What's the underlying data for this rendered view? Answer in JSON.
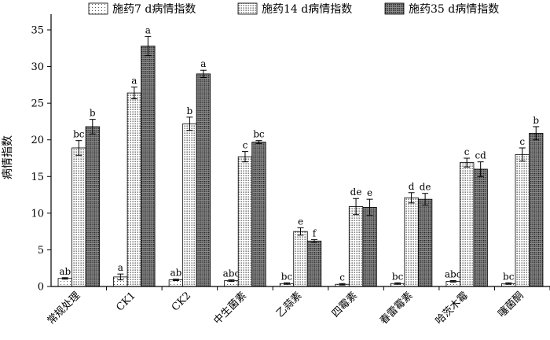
{
  "chart_data": {
    "type": "bar",
    "title": "",
    "xlabel": "",
    "ylabel": "病情指数",
    "ylim": [
      0,
      37
    ],
    "yticks": [
      0,
      5,
      10,
      15,
      20,
      25,
      30,
      35
    ],
    "grid": false,
    "legend_position": "top",
    "categories": [
      "常规处理",
      "CK1",
      "CK2",
      "中生菌素",
      "乙蒜素",
      "四霉素",
      "春雷霉素",
      "哈茨木霉",
      "噻菌酮"
    ],
    "series": [
      {
        "name": "施药7 d病情指数",
        "pattern": "sparse-dots",
        "values": [
          1.1,
          1.3,
          0.9,
          0.8,
          0.4,
          0.3,
          0.4,
          0.7,
          0.4
        ],
        "errors": [
          0.1,
          0.4,
          0.1,
          0.1,
          0.1,
          0.1,
          0.1,
          0.1,
          0.1
        ],
        "labels": [
          "ab",
          "a",
          "ab",
          "abc",
          "bc",
          "c",
          "bc",
          "abc",
          "bc"
        ]
      },
      {
        "name": "施药14 d病情指数",
        "pattern": "medium-dots",
        "values": [
          18.9,
          26.4,
          22.2,
          17.7,
          7.5,
          10.9,
          12.1,
          16.9,
          18.0
        ],
        "errors": [
          1.0,
          0.8,
          0.9,
          0.7,
          0.5,
          1.1,
          0.7,
          0.6,
          0.9
        ],
        "labels": [
          "bc",
          "a",
          "b",
          "c",
          "e",
          "de",
          "d",
          "c",
          "c"
        ]
      },
      {
        "name": "施药35 d病情指数",
        "pattern": "dense-dots",
        "values": [
          21.8,
          32.8,
          29.0,
          19.7,
          6.2,
          10.8,
          11.9,
          16.0,
          20.9
        ],
        "errors": [
          1.0,
          1.3,
          0.5,
          0.2,
          0.2,
          1.1,
          0.8,
          1.0,
          0.9
        ],
        "labels": [
          "b",
          "a",
          "a",
          "bc",
          "f",
          "e",
          "de",
          "cd",
          "b"
        ]
      }
    ]
  }
}
